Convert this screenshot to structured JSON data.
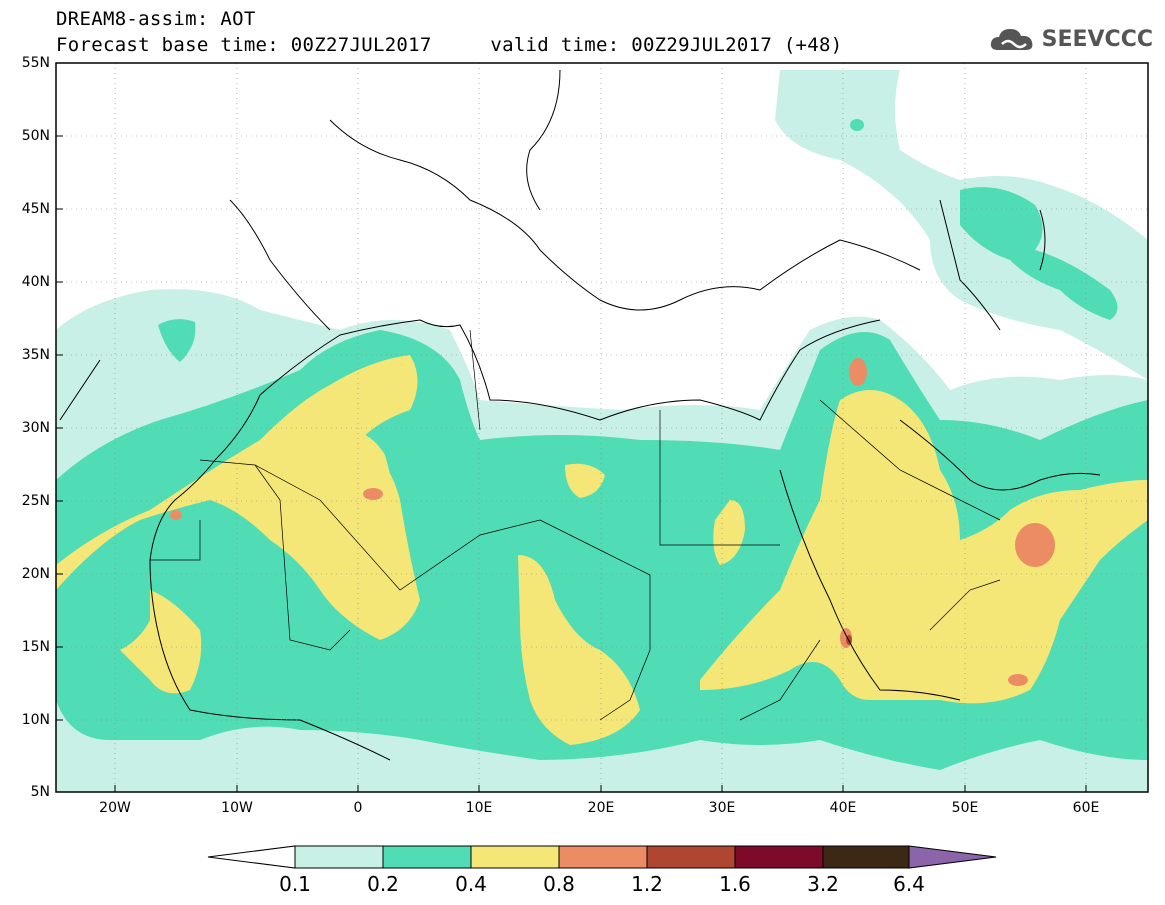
{
  "header": {
    "line1": "DREAM8-assim: AOT",
    "line2": "Forecast base time: 00Z27JUL2017     valid time: 00Z29JUL2017 (+48)"
  },
  "logo": {
    "text": "SEEVCCC",
    "icon": "cloud-icon"
  },
  "map": {
    "lat_labels": [
      "55N",
      "50N",
      "45N",
      "40N",
      "35N",
      "30N",
      "25N",
      "20N",
      "15N",
      "10N",
      "5N"
    ],
    "lon_labels": [
      "20W",
      "10W",
      "0",
      "10E",
      "20E",
      "30E",
      "40E",
      "50E",
      "60E"
    ]
  },
  "colorbar": {
    "labels": [
      "0.1",
      "0.2",
      "0.4",
      "0.8",
      "1.2",
      "1.6",
      "3.2",
      "6.4"
    ],
    "colors": [
      "#ffffff",
      "#c8f0e6",
      "#50dcb4",
      "#f5e678",
      "#eb8c64",
      "#af4632",
      "#7d0a28",
      "#3c2814",
      "#8c64aa"
    ]
  },
  "colors": {
    "aot_0_1": "#c8f0e6",
    "aot_0_2": "#50dcb4",
    "aot_0_4": "#f5e678",
    "aot_0_8": "#eb8c64",
    "aot_1_2": "#af4632"
  }
}
